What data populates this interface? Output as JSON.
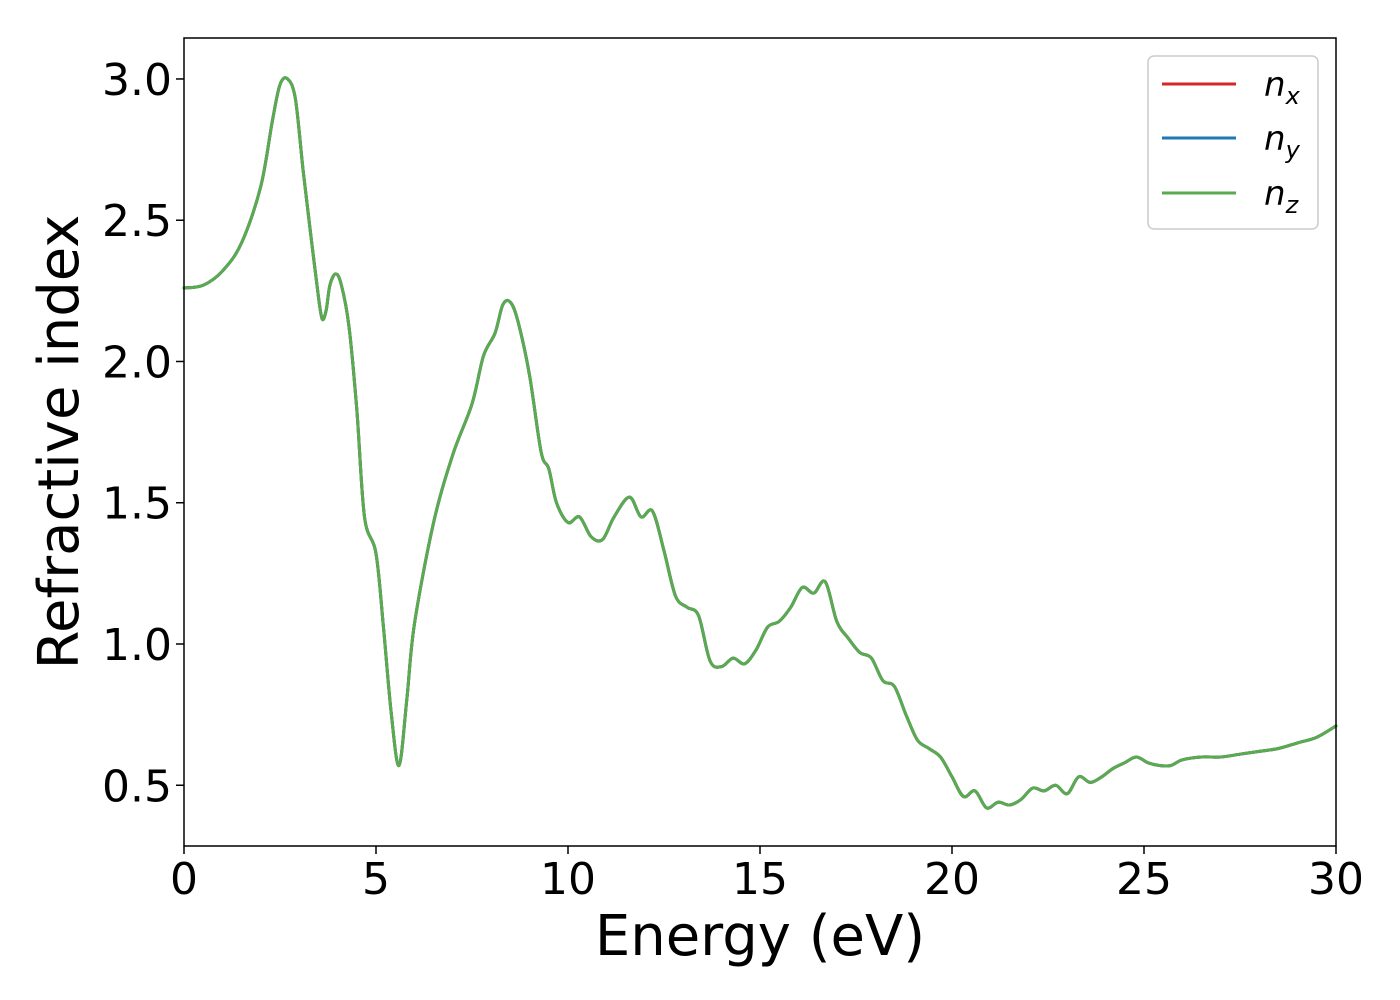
{
  "chart_data": {
    "type": "line",
    "title": "",
    "xlabel": "Energy (eV)",
    "ylabel": "Refractive index",
    "xlim": [
      0,
      30
    ],
    "ylim": [
      0.285,
      3.145
    ],
    "xticks": [
      0,
      5,
      10,
      15,
      20,
      25,
      30
    ],
    "xtick_labels": [
      "0",
      "5",
      "10",
      "15",
      "20",
      "25",
      "30"
    ],
    "yticks": [
      0.5,
      1.0,
      1.5,
      2.0,
      2.5,
      3.0
    ],
    "ytick_labels": [
      "0.5",
      "1.0",
      "1.5",
      "2.0",
      "2.5",
      "3.0"
    ],
    "grid": false,
    "legend_position": "top-right",
    "x": [
      0,
      0.5,
      1.0,
      1.5,
      2.0,
      2.3,
      2.5,
      2.7,
      2.9,
      3.1,
      3.3,
      3.5,
      3.6,
      3.7,
      3.8,
      3.95,
      4.1,
      4.3,
      4.5,
      4.7,
      5.0,
      5.2,
      5.4,
      5.6,
      5.8,
      6.0,
      6.5,
      7.0,
      7.5,
      7.8,
      8.1,
      8.3,
      8.5,
      8.7,
      9.0,
      9.3,
      9.5,
      9.7,
      10.0,
      10.3,
      10.6,
      10.9,
      11.2,
      11.6,
      11.9,
      12.2,
      12.5,
      12.8,
      13.1,
      13.4,
      13.7,
      14.0,
      14.3,
      14.6,
      14.9,
      15.2,
      15.5,
      15.8,
      16.1,
      16.4,
      16.7,
      17.0,
      17.3,
      17.6,
      17.9,
      18.2,
      18.5,
      18.8,
      19.1,
      19.4,
      19.7,
      20.0,
      20.3,
      20.6,
      20.9,
      21.2,
      21.5,
      21.8,
      22.1,
      22.4,
      22.7,
      23.0,
      23.3,
      23.6,
      23.9,
      24.2,
      24.5,
      24.8,
      25.1,
      25.4,
      25.7,
      26.0,
      26.5,
      27.0,
      27.5,
      28.0,
      28.5,
      29.0,
      29.5,
      30.0
    ],
    "series": [
      {
        "name": "n_x",
        "color": "#d62728",
        "values": [
          2.26,
          2.27,
          2.32,
          2.42,
          2.62,
          2.85,
          2.98,
          3.0,
          2.93,
          2.68,
          2.45,
          2.23,
          2.15,
          2.18,
          2.27,
          2.31,
          2.27,
          2.12,
          1.83,
          1.45,
          1.32,
          1.05,
          0.75,
          0.57,
          0.8,
          1.07,
          1.43,
          1.67,
          1.85,
          2.02,
          2.1,
          2.2,
          2.21,
          2.14,
          1.95,
          1.68,
          1.62,
          1.5,
          1.43,
          1.45,
          1.38,
          1.37,
          1.45,
          1.52,
          1.45,
          1.47,
          1.33,
          1.17,
          1.13,
          1.1,
          0.94,
          0.92,
          0.95,
          0.93,
          0.98,
          1.06,
          1.08,
          1.13,
          1.2,
          1.18,
          1.22,
          1.08,
          1.02,
          0.97,
          0.95,
          0.87,
          0.85,
          0.75,
          0.66,
          0.63,
          0.6,
          0.53,
          0.46,
          0.48,
          0.42,
          0.44,
          0.43,
          0.45,
          0.49,
          0.48,
          0.5,
          0.47,
          0.53,
          0.51,
          0.53,
          0.56,
          0.58,
          0.6,
          0.58,
          0.57,
          0.57,
          0.59,
          0.6,
          0.6,
          0.61,
          0.62,
          0.63,
          0.65,
          0.67,
          0.71
        ]
      },
      {
        "name": "n_y",
        "color": "#1f77b4",
        "values": [
          2.26,
          2.27,
          2.32,
          2.42,
          2.62,
          2.85,
          2.98,
          3.0,
          2.93,
          2.68,
          2.45,
          2.23,
          2.15,
          2.18,
          2.27,
          2.31,
          2.27,
          2.12,
          1.83,
          1.45,
          1.32,
          1.05,
          0.75,
          0.57,
          0.8,
          1.07,
          1.43,
          1.67,
          1.85,
          2.02,
          2.1,
          2.2,
          2.21,
          2.14,
          1.95,
          1.68,
          1.62,
          1.5,
          1.43,
          1.45,
          1.38,
          1.37,
          1.45,
          1.52,
          1.45,
          1.47,
          1.33,
          1.17,
          1.13,
          1.1,
          0.94,
          0.92,
          0.95,
          0.93,
          0.98,
          1.06,
          1.08,
          1.13,
          1.2,
          1.18,
          1.22,
          1.08,
          1.02,
          0.97,
          0.95,
          0.87,
          0.85,
          0.75,
          0.66,
          0.63,
          0.6,
          0.53,
          0.46,
          0.48,
          0.42,
          0.44,
          0.43,
          0.45,
          0.49,
          0.48,
          0.5,
          0.47,
          0.53,
          0.51,
          0.53,
          0.56,
          0.58,
          0.6,
          0.58,
          0.57,
          0.57,
          0.59,
          0.6,
          0.6,
          0.61,
          0.62,
          0.63,
          0.65,
          0.67,
          0.71
        ]
      },
      {
        "name": "n_z",
        "color": "#5aaa50",
        "values": [
          2.26,
          2.27,
          2.32,
          2.42,
          2.62,
          2.85,
          2.98,
          3.0,
          2.93,
          2.68,
          2.45,
          2.23,
          2.15,
          2.18,
          2.27,
          2.31,
          2.27,
          2.12,
          1.83,
          1.45,
          1.32,
          1.05,
          0.75,
          0.57,
          0.8,
          1.07,
          1.43,
          1.67,
          1.85,
          2.02,
          2.1,
          2.2,
          2.21,
          2.14,
          1.95,
          1.68,
          1.62,
          1.5,
          1.43,
          1.45,
          1.38,
          1.37,
          1.45,
          1.52,
          1.45,
          1.47,
          1.33,
          1.17,
          1.13,
          1.1,
          0.94,
          0.92,
          0.95,
          0.93,
          0.98,
          1.06,
          1.08,
          1.13,
          1.2,
          1.18,
          1.22,
          1.08,
          1.02,
          0.97,
          0.95,
          0.87,
          0.85,
          0.75,
          0.66,
          0.63,
          0.6,
          0.53,
          0.46,
          0.48,
          0.42,
          0.44,
          0.43,
          0.45,
          0.49,
          0.48,
          0.5,
          0.47,
          0.53,
          0.51,
          0.53,
          0.56,
          0.58,
          0.6,
          0.58,
          0.57,
          0.57,
          0.59,
          0.6,
          0.6,
          0.61,
          0.62,
          0.63,
          0.65,
          0.67,
          0.71
        ]
      }
    ],
    "legend": [
      {
        "symbol": "n",
        "subscript": "x"
      },
      {
        "symbol": "n",
        "subscript": "y"
      },
      {
        "symbol": "n",
        "subscript": "z"
      }
    ]
  }
}
